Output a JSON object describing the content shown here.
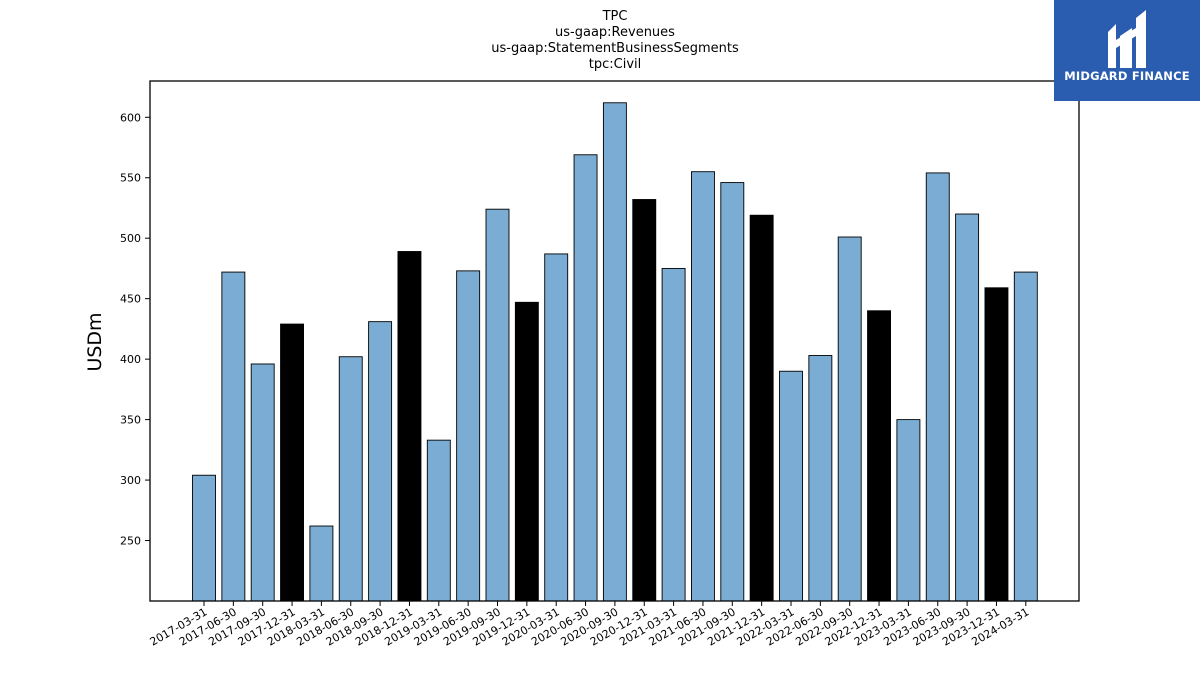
{
  "brand": {
    "name": "MIDGARD FINANCE",
    "icon": "midgard-logo-icon",
    "color": "#2a5db0"
  },
  "chart_data": {
    "type": "bar",
    "title_lines": [
      "TPC",
      "us-gaap:Revenues",
      "us-gaap:StatementBusinessSegments",
      "tpc:Civil"
    ],
    "xlabel": "",
    "ylabel": "USDm",
    "ylim": [
      200,
      630
    ],
    "yticks": [
      250,
      300,
      350,
      400,
      450,
      500,
      550,
      600
    ],
    "grid": false,
    "colors": {
      "quarter": "#7bacd3",
      "year_end": "#000000"
    },
    "categories": [
      "2017-03-31",
      "2017-06-30",
      "2017-09-30",
      "2017-12-31",
      "2018-03-31",
      "2018-06-30",
      "2018-09-30",
      "2018-12-31",
      "2019-03-31",
      "2019-06-30",
      "2019-09-30",
      "2019-12-31",
      "2020-03-31",
      "2020-06-30",
      "2020-09-30",
      "2020-12-31",
      "2021-03-31",
      "2021-06-30",
      "2021-09-30",
      "2021-12-31",
      "2022-03-31",
      "2022-06-30",
      "2022-09-30",
      "2022-12-31",
      "2023-03-31",
      "2023-06-30",
      "2023-09-30",
      "2023-12-31",
      "2024-03-31"
    ],
    "values": [
      304,
      472,
      396,
      429,
      262,
      402,
      431,
      489,
      333,
      473,
      524,
      447,
      487,
      569,
      612,
      532,
      475,
      555,
      546,
      519,
      390,
      403,
      501,
      440,
      350,
      554,
      520,
      459,
      472
    ]
  }
}
